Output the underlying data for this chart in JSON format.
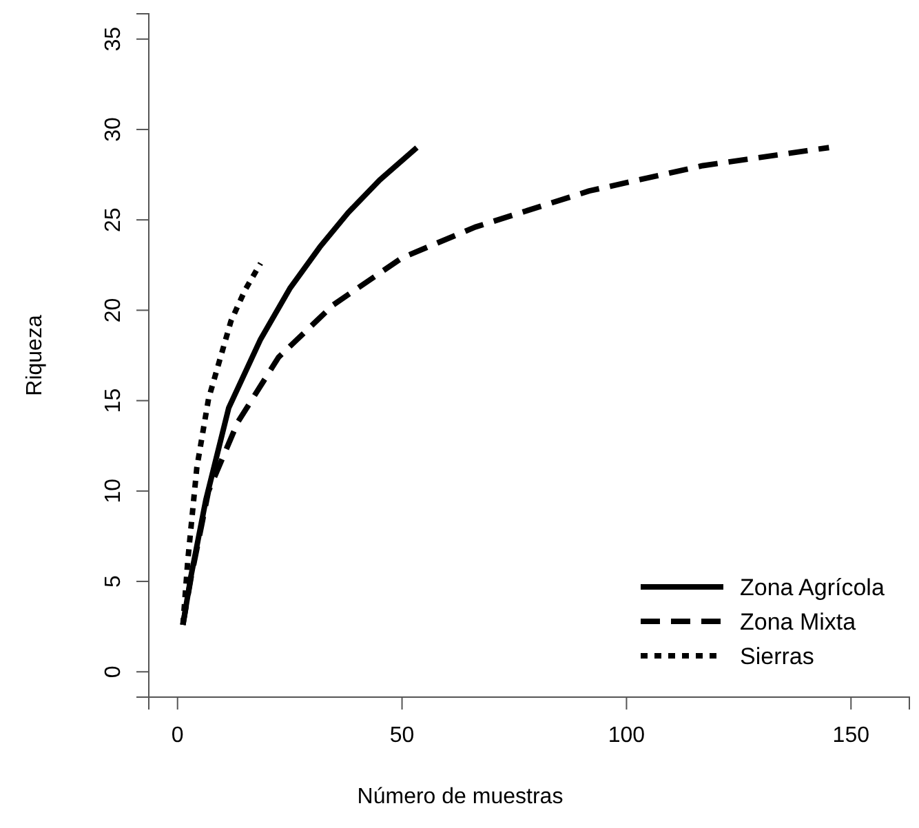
{
  "chart_data": {
    "type": "line",
    "xlabel": "Número de muestras",
    "ylabel": "Riqueza",
    "xlim": [
      -6.4,
      163
    ],
    "ylim": [
      -1.4,
      36.4
    ],
    "xticks": [
      0,
      50,
      100,
      150
    ],
    "yticks": [
      0,
      5,
      10,
      15,
      20,
      25,
      30,
      35
    ],
    "grid": false,
    "legend": "bottom right",
    "series": [
      {
        "name": "Zona Agrícola",
        "color": "#000000",
        "line_style": "solid",
        "x": [
          1.2,
          3,
          6.3,
          11.4,
          18.5,
          25,
          31.7,
          38,
          45,
          53.3
        ],
        "values": [
          2.6,
          5.3,
          9.5,
          14.6,
          18.4,
          21.2,
          23.5,
          25.4,
          27.2,
          29.0
        ]
      },
      {
        "name": "Zona Mixta",
        "color": "#000000",
        "line_style": "dashed",
        "x": [
          1.2,
          3,
          6.9,
          13.4,
          22.5,
          34.7,
          50,
          66.3,
          91.7,
          117,
          145.1
        ],
        "values": [
          2.6,
          5.2,
          10,
          13.8,
          17.4,
          20.3,
          22.9,
          24.6,
          26.6,
          28.0,
          29.0
        ]
      },
      {
        "name": "Sierras",
        "color": "#000000",
        "line_style": "dotted",
        "x": [
          1.2,
          2.3,
          4.3,
          6.9,
          11.9,
          15,
          18.5
        ],
        "values": [
          2.6,
          6.2,
          11.3,
          15.1,
          19.4,
          21.1,
          22.6
        ]
      }
    ]
  }
}
